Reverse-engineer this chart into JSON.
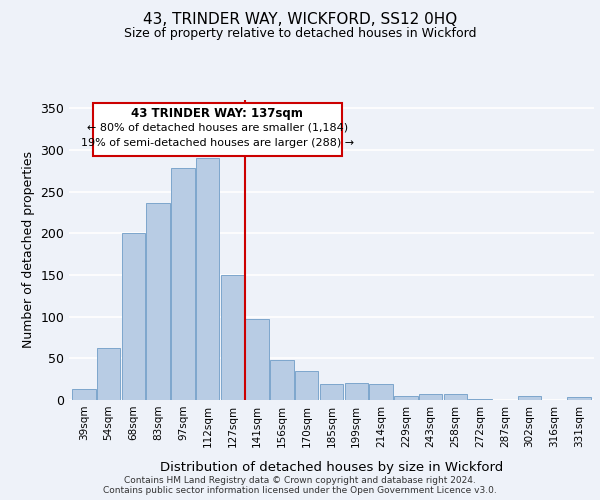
{
  "title": "43, TRINDER WAY, WICKFORD, SS12 0HQ",
  "subtitle": "Size of property relative to detached houses in Wickford",
  "xlabel": "Distribution of detached houses by size in Wickford",
  "ylabel": "Number of detached properties",
  "bin_labels": [
    "39sqm",
    "54sqm",
    "68sqm",
    "83sqm",
    "97sqm",
    "112sqm",
    "127sqm",
    "141sqm",
    "156sqm",
    "170sqm",
    "185sqm",
    "199sqm",
    "214sqm",
    "229sqm",
    "243sqm",
    "258sqm",
    "272sqm",
    "287sqm",
    "302sqm",
    "316sqm",
    "331sqm"
  ],
  "bar_values": [
    13,
    63,
    200,
    237,
    278,
    290,
    150,
    97,
    48,
    35,
    19,
    20,
    19,
    5,
    7,
    7,
    1,
    0,
    5,
    0,
    4
  ],
  "bar_color": "#b8cce4",
  "bar_edge_color": "#7da6cc",
  "vline_x_index": 7,
  "vline_color": "#cc0000",
  "annotation_line1": "43 TRINDER WAY: 137sqm",
  "annotation_line2": "← 80% of detached houses are smaller (1,184)",
  "annotation_line3": "19% of semi-detached houses are larger (288) →",
  "annotation_box_color": "#ffffff",
  "annotation_box_edge": "#cc0000",
  "ylim": [
    0,
    360
  ],
  "yticks": [
    0,
    50,
    100,
    150,
    200,
    250,
    300,
    350
  ],
  "footer_line1": "Contains HM Land Registry data © Crown copyright and database right 2024.",
  "footer_line2": "Contains public sector information licensed under the Open Government Licence v3.0.",
  "bg_color": "#eef2f9"
}
